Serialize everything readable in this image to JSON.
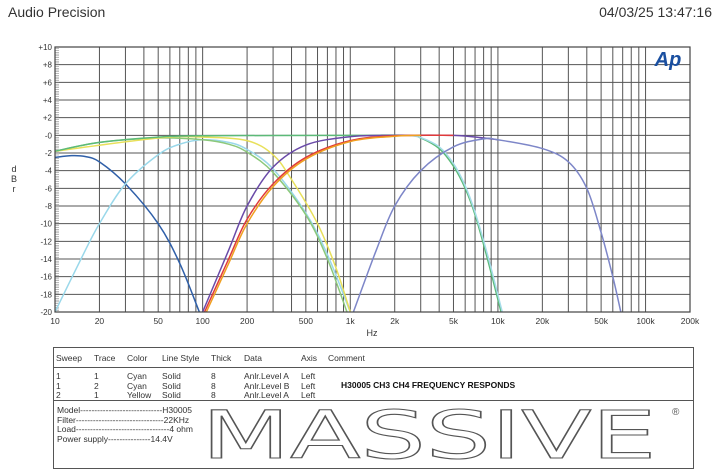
{
  "header": {
    "title": "Audio Precision",
    "timestamp": "04/03/25 13:47:16"
  },
  "brand_logo": "Ap",
  "chart_data": {
    "type": "line",
    "title": "",
    "xlabel": "Hz",
    "ylabel": "dBr",
    "x_scale": "log",
    "xlim": [
      10,
      200000
    ],
    "ylim": [
      -20,
      10
    ],
    "grid": true,
    "x_ticks": [
      10,
      20,
      50,
      100,
      200,
      500,
      1000,
      2000,
      5000,
      10000,
      20000,
      50000,
      100000,
      200000
    ],
    "x_tick_labels": [
      "10",
      "20",
      "50",
      "100",
      "200",
      "500",
      "1k",
      "2k",
      "5k",
      "10k",
      "20k",
      "50k",
      "100k",
      "200k"
    ],
    "y_ticks": [
      10,
      8,
      6,
      4,
      2,
      0,
      -2,
      -4,
      -6,
      -8,
      -10,
      -12,
      -14,
      -16,
      -18,
      -20
    ],
    "y_tick_labels": [
      "+10",
      "+8",
      "+6",
      "+4",
      "+2",
      "-0",
      "-2",
      "-4",
      "-6",
      "-8",
      "-10",
      "-12",
      "-14",
      "-16",
      "-18",
      "-20"
    ],
    "series": [
      {
        "color": "#2f5fa8",
        "points": [
          [
            10,
            -2.5
          ],
          [
            13,
            -2.3
          ],
          [
            16,
            -2.4
          ],
          [
            20,
            -3
          ],
          [
            30,
            -5.5
          ],
          [
            50,
            -10
          ],
          [
            70,
            -14.5
          ],
          [
            95,
            -20
          ]
        ]
      },
      {
        "color": "#9ad8ea",
        "points": [
          [
            10,
            -20
          ],
          [
            15,
            -14
          ],
          [
            20,
            -10
          ],
          [
            30,
            -5.5
          ],
          [
            50,
            -2.2
          ],
          [
            70,
            -1
          ],
          [
            100,
            -0.5
          ],
          [
            150,
            -0.8
          ],
          [
            200,
            -1.6
          ],
          [
            300,
            -3.8
          ],
          [
            500,
            -8.8
          ],
          [
            700,
            -13.5
          ],
          [
            1000,
            -20
          ]
        ]
      },
      {
        "color": "#8cc87a",
        "points": [
          [
            10,
            -1.8
          ],
          [
            20,
            -0.8
          ],
          [
            50,
            -0.3
          ],
          [
            100,
            -0.5
          ],
          [
            150,
            -1
          ],
          [
            200,
            -1.9
          ],
          [
            300,
            -4.2
          ],
          [
            500,
            -9
          ],
          [
            700,
            -14
          ],
          [
            950,
            -20
          ]
        ]
      },
      {
        "color": "#e8e05a",
        "points": [
          [
            10,
            -1.8
          ],
          [
            50,
            -0.3
          ],
          [
            100,
            -0.2
          ],
          [
            200,
            -0.6
          ],
          [
            300,
            -2.2
          ],
          [
            400,
            -5
          ],
          [
            600,
            -10
          ],
          [
            800,
            -15
          ],
          [
            1000,
            -20
          ]
        ]
      },
      {
        "color": "#5cba78",
        "points": [
          [
            10,
            -1.8
          ],
          [
            20,
            -0.8
          ],
          [
            50,
            -0.2
          ],
          [
            100,
            -0.05
          ],
          [
            1000,
            0
          ],
          [
            2500,
            0
          ],
          [
            3000,
            -0.3
          ],
          [
            4000,
            -1.5
          ],
          [
            5000,
            -3.5
          ],
          [
            6000,
            -6
          ],
          [
            7000,
            -9
          ],
          [
            8500,
            -14
          ],
          [
            10500,
            -20
          ]
        ]
      },
      {
        "color": "#a6dcea",
        "points": [
          [
            2500,
            0
          ],
          [
            3000,
            -0.25
          ],
          [
            4000,
            -1.3
          ],
          [
            5000,
            -3.2
          ],
          [
            6000,
            -5.7
          ],
          [
            7000,
            -8.7
          ],
          [
            8500,
            -13.5
          ],
          [
            10700,
            -20
          ]
        ]
      },
      {
        "color": "#6a4aa8",
        "points": [
          [
            100,
            -20
          ],
          [
            150,
            -13
          ],
          [
            200,
            -8
          ],
          [
            300,
            -3.6
          ],
          [
            500,
            -1.1
          ],
          [
            1000,
            -0.15
          ],
          [
            2000,
            0
          ],
          [
            5000,
            0
          ],
          [
            8000,
            -0.3
          ],
          [
            10000,
            -0.5
          ]
        ]
      },
      {
        "color": "#e03a3a",
        "points": [
          [
            103,
            -20
          ],
          [
            150,
            -14
          ],
          [
            200,
            -9.5
          ],
          [
            300,
            -5.5
          ],
          [
            500,
            -2.5
          ],
          [
            1000,
            -0.6
          ],
          [
            2000,
            -0.05
          ],
          [
            5000,
            0
          ]
        ]
      },
      {
        "color": "#f0a020",
        "points": [
          [
            106,
            -20
          ],
          [
            150,
            -14.5
          ],
          [
            200,
            -10
          ],
          [
            300,
            -5.8
          ],
          [
            500,
            -2.7
          ],
          [
            1000,
            -0.7
          ],
          [
            2000,
            -0.1
          ],
          [
            3000,
            0
          ]
        ]
      },
      {
        "color": "#7d86c8",
        "points": [
          [
            1050,
            -20
          ],
          [
            1500,
            -13
          ],
          [
            2000,
            -8
          ],
          [
            3000,
            -4
          ],
          [
            5000,
            -1.3
          ],
          [
            8000,
            -0.4
          ],
          [
            10000,
            -0.5
          ],
          [
            20000,
            -1.5
          ],
          [
            30000,
            -3
          ],
          [
            40000,
            -6
          ],
          [
            50000,
            -11
          ],
          [
            60000,
            -16
          ],
          [
            68000,
            -20
          ]
        ]
      }
    ]
  },
  "legend": {
    "columns": [
      "Sweep",
      "Trace",
      "Color",
      "Line Style",
      "Thick",
      "Data",
      "Axis",
      "Comment"
    ],
    "rows": [
      [
        "1",
        "1",
        "Cyan",
        "Solid",
        "8",
        "Anlr.Level A",
        "Left"
      ],
      [
        "1",
        "2",
        "Cyan",
        "Solid",
        "8",
        "Anlr.Level B",
        "Left"
      ],
      [
        "2",
        "1",
        "Yellow",
        "Solid",
        "8",
        "Anlr.Level A",
        "Left"
      ]
    ],
    "comment": "H30005 CH3 CH4 FREQUENCY RESPONDS"
  },
  "specs": [
    "Model-----------------------------H30005",
    "Filter-------------------------------22KHz",
    "Load---------------------------------4 ohm",
    "Power supply---------------14.4V"
  ],
  "logo": {
    "text": "MASSIVE",
    "mark": "®"
  }
}
